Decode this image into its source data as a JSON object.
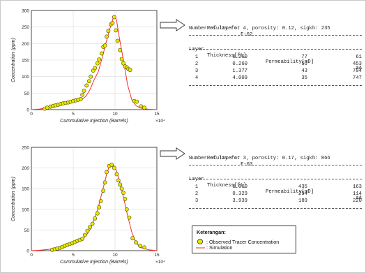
{
  "chart_data": [
    {
      "type": "scatter",
      "title": "",
      "xlabel": "Cummulative Injection (Barrels)",
      "ylabel": "Concentration (ppm)",
      "x_multiplier_label": "×10⁴",
      "xlim": [
        0,
        15
      ],
      "ylim": [
        0,
        300
      ],
      "xticks": [
        0,
        5,
        10,
        15
      ],
      "yticks": [
        0,
        50,
        100,
        150,
        200,
        250,
        300
      ],
      "grid": true,
      "series": [
        {
          "name": "Observed Tracer Concentration",
          "mode": "markers",
          "x": [
            1.6,
            1.9,
            2.3,
            2.6,
            2.9,
            3.2,
            3.5,
            3.8,
            4.1,
            4.4,
            4.7,
            5.0,
            5.3,
            5.6,
            5.9,
            6.1,
            6.3,
            6.6,
            6.9,
            7.1,
            7.4,
            7.6,
            7.9,
            8.1,
            8.4,
            8.6,
            8.8,
            9.0,
            9.2,
            9.5,
            9.7,
            9.9,
            10.1,
            10.3,
            10.6,
            10.8,
            11.0,
            11.2,
            11.4,
            11.6,
            11.8,
            12.3,
            12.6,
            13.1,
            13.5
          ],
          "y": [
            3,
            6,
            9,
            11,
            13,
            15,
            17,
            19,
            20,
            22,
            24,
            26,
            28,
            30,
            32,
            45,
            57,
            73,
            86,
            100,
            118,
            126,
            140,
            152,
            170,
            190,
            194,
            221,
            238,
            258,
            262,
            280,
            240,
            208,
            180,
            153,
            140,
            131,
            128,
            123,
            120,
            26,
            24,
            10,
            6
          ]
        },
        {
          "name": "Simulation",
          "mode": "line",
          "color": "#ff2a2a",
          "x": [
            0,
            1,
            2,
            3,
            4,
            5,
            6,
            6.5,
            7,
            7.5,
            8,
            8.5,
            9,
            9.5,
            9.8,
            10,
            10.2,
            10.5,
            11,
            11.5,
            12,
            12.5,
            13,
            14,
            15
          ],
          "y": [
            0,
            2,
            6,
            11,
            16,
            22,
            30,
            40,
            60,
            90,
            115,
            160,
            210,
            255,
            278,
            284,
            268,
            220,
            150,
            75,
            30,
            12,
            5,
            1,
            0
          ]
        }
      ]
    },
    {
      "type": "scatter",
      "title": "",
      "xlabel": "Cummulative Injection (Barrels)",
      "ylabel": "Concentration (ppm)",
      "x_multiplier_label": "×10⁴",
      "xlim": [
        0,
        15
      ],
      "ylim": [
        0,
        250
      ],
      "xticks": [
        0,
        5,
        10,
        15
      ],
      "yticks": [
        0,
        50,
        100,
        150,
        200,
        250
      ],
      "grid": true,
      "series": [
        {
          "name": "Observed Tracer Concentration",
          "mode": "markers",
          "x": [
            2.5,
            2.8,
            3.1,
            3.4,
            3.7,
            4.0,
            4.3,
            4.6,
            4.9,
            5.2,
            5.5,
            5.8,
            6.1,
            6.4,
            6.7,
            7.0,
            7.3,
            7.6,
            7.9,
            8.1,
            8.3,
            8.6,
            8.8,
            9.0,
            9.3,
            9.6,
            9.9,
            10.2,
            10.4,
            10.6,
            10.8,
            11.0,
            11.2,
            11.4,
            11.7,
            12.1,
            12.5,
            13.0,
            13.5
          ],
          "y": [
            2,
            4,
            5,
            7,
            9,
            12,
            14,
            16,
            18,
            21,
            24,
            26,
            29,
            38,
            48,
            57,
            65,
            78,
            90,
            105,
            120,
            145,
            165,
            190,
            205,
            208,
            200,
            185,
            170,
            160,
            150,
            140,
            125,
            100,
            80,
            30,
            20,
            12,
            8
          ]
        },
        {
          "name": "Simulation",
          "mode": "line",
          "color": "#ff2a2a",
          "x": [
            0,
            1,
            2,
            3,
            4,
            5,
            6,
            6.5,
            7,
            7.5,
            8,
            8.5,
            9,
            9.3,
            9.6,
            9.9,
            10.2,
            10.5,
            11,
            11.5,
            12,
            12.5,
            13,
            14,
            15
          ],
          "y": [
            0,
            1,
            3,
            7,
            12,
            19,
            27,
            35,
            50,
            75,
            105,
            145,
            185,
            203,
            209,
            205,
            192,
            170,
            130,
            85,
            45,
            20,
            8,
            2,
            0
          ]
        }
      ]
    }
  ],
  "results": [
    {
      "title_label": "Results for",
      "well": "F-02",
      "summary": "Number of layers: 4, porosity: 0.12, sigkh: 235",
      "headers": [
        "Layer",
        "Thickness[ft]",
        "Permeability[mD]",
        "aA"
      ],
      "rows": [
        [
          "1",
          "0.260",
          "77",
          "61"
        ],
        [
          "2",
          "0.260",
          "56",
          "453"
        ],
        [
          "3",
          "1.377",
          "43",
          "704"
        ],
        [
          "4",
          "4.009",
          "35",
          "747"
        ]
      ]
    },
    {
      "title_label": "Results for",
      "well": "F-03",
      "summary": "Number of layers: 3, porosity: 0.17, sigkh: 866",
      "headers": [
        "Layer",
        "Thickness[ft]",
        "Permeability[mD]",
        "aA"
      ],
      "rows": [
        [
          "1",
          "0.060",
          "435",
          "163"
        ],
        [
          "2",
          "0.329",
          "294",
          "114"
        ],
        [
          "3",
          "3.939",
          "189",
          "220"
        ]
      ]
    }
  ],
  "legend": {
    "title": "Keterangan:",
    "items": [
      {
        "marker": "circle",
        "fill": "#e8e800",
        "label": ": Observed Tracer Concentration"
      },
      {
        "marker": "line",
        "color": "#ff2a2a",
        "label": ": Simulation"
      }
    ]
  }
}
